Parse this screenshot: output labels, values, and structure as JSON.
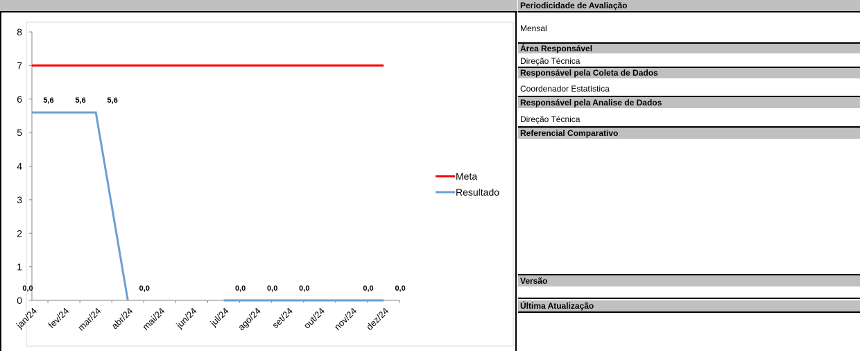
{
  "chart_data": {
    "type": "line",
    "categories": [
      "jan/24",
      "fev/24",
      "mar/24",
      "abr/24",
      "mai/24",
      "jun/24",
      "jul/24",
      "ago/24",
      "set/24",
      "out/24",
      "nov/24",
      "dez/24"
    ],
    "series": [
      {
        "name": "Meta",
        "color": "#ff0000",
        "values": [
          7,
          7,
          7,
          7,
          7,
          7,
          7,
          7,
          7,
          7,
          7,
          7
        ]
      },
      {
        "name": "Resultado",
        "color": "#6a9fd2",
        "values": [
          5.6,
          5.6,
          5.6,
          0,
          null,
          null,
          0,
          0,
          0,
          0,
          0,
          0
        ],
        "labels": [
          "5,6",
          "5,6",
          "5,6",
          "0,0",
          "",
          "",
          "0,0",
          "0,0",
          "0,0",
          "",
          "0,0",
          "0,0"
        ],
        "bottom_labels": [
          "0,0",
          "",
          "",
          "",
          "",
          "",
          "",
          "",
          "",
          "",
          "",
          ""
        ]
      }
    ],
    "ylim": [
      0,
      8
    ],
    "yticks": [
      "0",
      "1",
      "2",
      "3",
      "4",
      "5",
      "6",
      "7",
      "8"
    ],
    "legend_position": "right"
  },
  "panel": {
    "periodicidade_label": "Periodicidade de Avaliação",
    "periodicidade_value": "Mensal",
    "area_label": "Área Responsável",
    "area_value": "Direção Técnica",
    "coleta_label": "Responsável pela Coleta de Dados",
    "coleta_value": "Coordenador Estatística",
    "analise_label": "Responsável pela Analise de Dados",
    "analise_value": "Direção Técnica",
    "referencial_label": "Referencial Comparativo",
    "versao_label": "Versão",
    "atualizacao_label": "Última Atualização"
  }
}
